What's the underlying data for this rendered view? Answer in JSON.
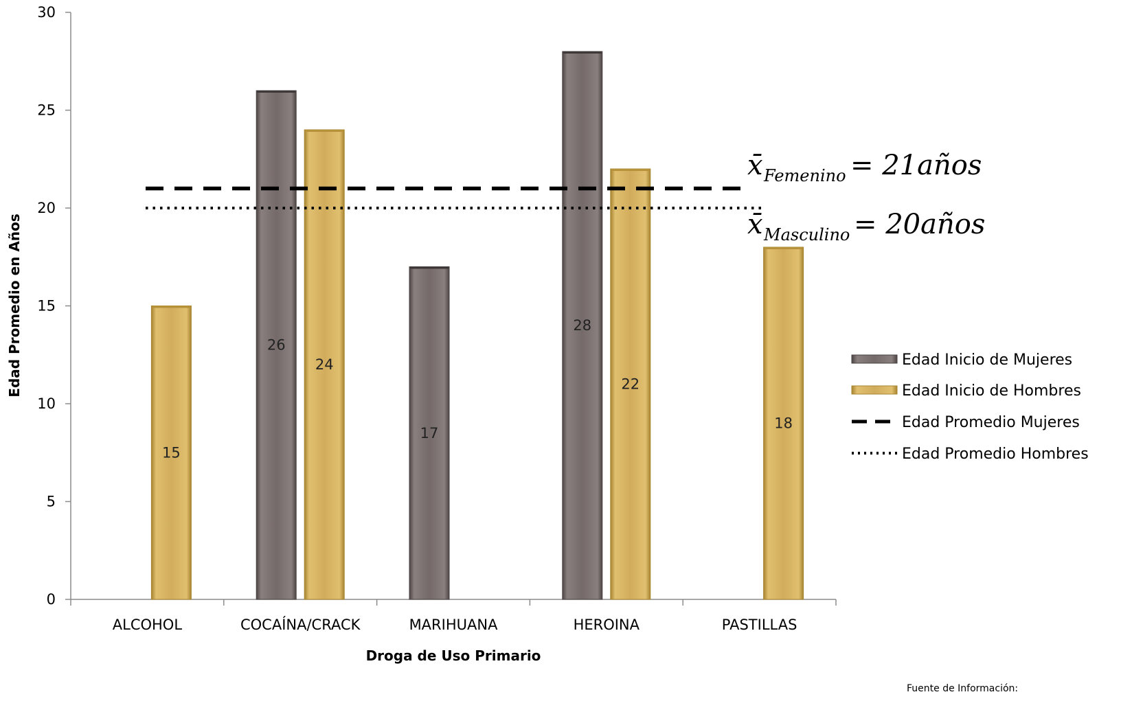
{
  "chart_data": {
    "type": "bar",
    "categories": [
      "ALCOHOL",
      "COCAÍNA/CRACK",
      "MARIHUANA",
      "HEROINA",
      "PASTILLAS"
    ],
    "series": [
      {
        "name": "Edad Inicio de Mujeres",
        "color": "#756a6a",
        "values": [
          null,
          26,
          17,
          28,
          null
        ]
      },
      {
        "name": "Edad Inicio de Hombres",
        "color": "#d1ac5c",
        "values": [
          15,
          24,
          null,
          22,
          18
        ]
      }
    ],
    "reference_lines": [
      {
        "name": "Edad Promedio Mujeres",
        "value": 21,
        "style": "dashed",
        "color": "#000000"
      },
      {
        "name": "Edad Promedio Hombres",
        "value": 20,
        "style": "dotted",
        "color": "#000000"
      }
    ],
    "annotations": [
      {
        "symbol": "x̄",
        "subscript": "Femenino",
        "text": "= 21años"
      },
      {
        "symbol": "x̄",
        "subscript": "Masculino",
        "text": "= 20años"
      }
    ],
    "xlabel": "Droga de Uso Primario",
    "ylabel": "Edad Promedio en Años",
    "ylim": [
      0,
      30
    ],
    "yticks": [
      0,
      5,
      10,
      15,
      20,
      25,
      30
    ],
    "grid": false,
    "legend_position": "right"
  },
  "source_note": "Fuente de Información:"
}
